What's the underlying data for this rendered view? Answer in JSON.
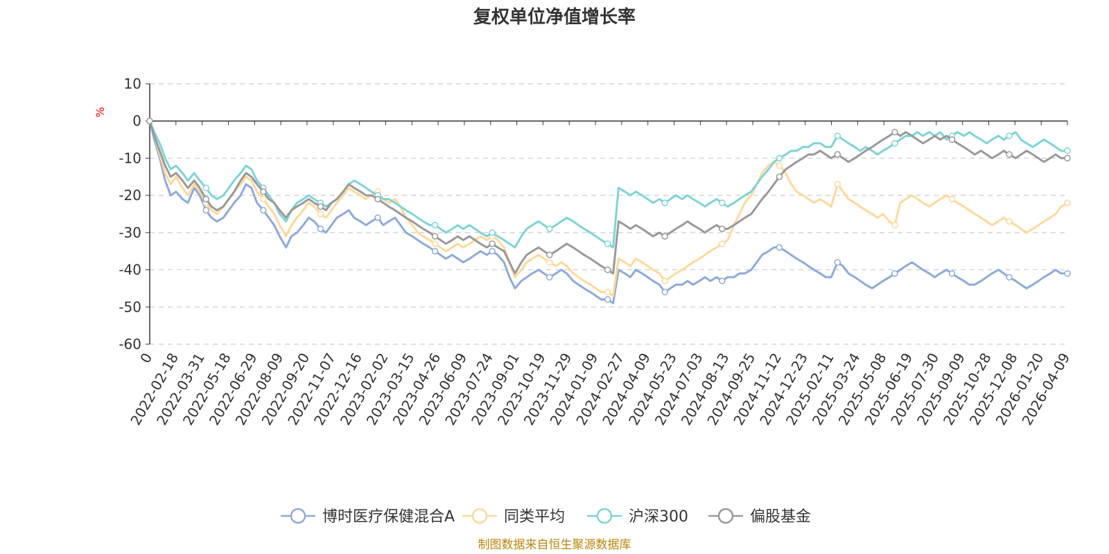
{
  "chart_data": {
    "type": "line",
    "title": "复权单位净值增长率",
    "ylabel": "%",
    "ylim": [
      -60,
      10
    ],
    "yticks": [
      10,
      0,
      -10,
      -20,
      -30,
      -40,
      -50,
      -60
    ],
    "xlabels": [
      "0",
      "2022-02-18",
      "2022-03-31",
      "2022-05-18",
      "2022-06-29",
      "2022-08-09",
      "2022-09-20",
      "2022-11-07",
      "2022-12-16",
      "2023-02-02",
      "2023-03-15",
      "2023-04-26",
      "2023-06-09",
      "2023-07-24",
      "2023-09-01",
      "2023-10-19",
      "2023-11-29",
      "2024-01-09",
      "2024-02-27",
      "2024-04-09",
      "2024-05-23",
      "2024-07-03",
      "2024-08-13",
      "2024-09-25",
      "2024-11-12",
      "2024-12-23",
      "2025-02-11",
      "2025-03-24",
      "2025-05-08",
      "2025-06-19",
      "2025-07-30",
      "2025-09-09",
      "2025-10-28",
      "2025-12-08",
      "2026-01-20",
      "2026-04-09"
    ],
    "x_index": [
      0,
      5,
      11,
      17,
      23,
      29,
      36,
      42,
      49,
      55,
      62,
      68,
      74,
      81,
      87,
      93,
      100,
      106,
      112,
      118,
      125,
      131,
      137,
      143,
      150,
      156,
      162,
      169,
      175,
      181,
      188,
      194,
      200,
      206,
      213,
      219,
      225,
      232,
      238,
      244,
      251,
      257,
      263,
      270,
      276,
      282,
      289,
      295,
      301,
      308,
      314,
      320,
      326,
      333,
      339,
      345,
      352,
      358,
      364,
      371,
      377,
      383,
      390,
      396,
      402,
      409,
      415,
      421,
      428,
      434,
      440,
      447,
      453,
      459,
      466,
      472,
      478,
      485,
      491,
      497,
      504,
      510,
      516,
      523,
      529,
      535,
      542,
      548,
      554,
      561,
      567,
      573,
      579,
      586,
      592,
      598,
      605,
      611,
      617,
      624,
      630,
      636,
      643,
      649,
      655,
      662,
      668,
      674,
      681,
      687,
      693,
      700,
      706,
      712,
      719,
      725,
      731,
      738,
      744,
      750,
      757,
      763,
      769,
      776,
      782,
      788,
      795,
      801,
      807,
      814,
      820,
      826,
      832,
      839,
      845,
      851,
      858,
      864,
      870,
      877,
      883,
      889,
      896,
      902,
      908,
      915,
      921,
      927,
      934,
      940,
      946,
      953,
      959,
      965,
      972,
      978,
      984,
      991,
      997,
      1003,
      1010
    ],
    "x_max": 1010,
    "series": [
      {
        "name": "博时医疗保健混合A",
        "color": "#8eaadb",
        "values": [
          0,
          -5,
          -10,
          -16,
          -20,
          -19,
          -21,
          -22,
          -18,
          -20,
          -24,
          -26,
          -27,
          -26,
          -24,
          -22,
          -20,
          -17,
          -18,
          -22,
          -24,
          -26,
          -28,
          -31,
          -34,
          -31,
          -30,
          -28,
          -26,
          -27,
          -29,
          -30,
          -28,
          -26,
          -25,
          -24,
          -26,
          -27,
          -28,
          -27,
          -26,
          -28,
          -27,
          -26,
          -28,
          -30,
          -31,
          -32,
          -33,
          -34,
          -35,
          -36,
          -37,
          -36,
          -37,
          -38,
          -37,
          -36,
          -35,
          -36,
          -35,
          -36,
          -38,
          -42,
          -45,
          -43,
          -42,
          -41,
          -40,
          -41,
          -42,
          -41,
          -40,
          -41,
          -43,
          -44,
          -45,
          -46,
          -47,
          -48,
          -48,
          -49,
          -40,
          -41,
          -42,
          -40,
          -41,
          -42,
          -43,
          -44,
          -46,
          -45,
          -44,
          -44,
          -43,
          -44,
          -43,
          -42,
          -43,
          -42,
          -43,
          -42,
          -42,
          -41,
          -41,
          -40,
          -38,
          -36,
          -35,
          -34,
          -34,
          -35,
          -36,
          -37,
          -38,
          -39,
          -40,
          -41,
          -42,
          -42,
          -38,
          -39,
          -41,
          -42,
          -43,
          -44,
          -45,
          -44,
          -43,
          -42,
          -41,
          -40,
          -39,
          -38,
          -39,
          -40,
          -41,
          -42,
          -41,
          -40,
          -41,
          -42,
          -43,
          -44,
          -44,
          -43,
          -42,
          -41,
          -40,
          -41,
          -42,
          -43,
          -44,
          -45,
          -44,
          -43,
          -42,
          -41,
          -40,
          -41,
          -41
        ]
      },
      {
        "name": "同类平均",
        "color": "#ffd89b",
        "values": [
          0,
          -4,
          -9,
          -14,
          -17,
          -15,
          -18,
          -20,
          -17,
          -19,
          -22,
          -24,
          -25,
          -23,
          -21,
          -19,
          -17,
          -15,
          -16,
          -19,
          -21,
          -23,
          -25,
          -28,
          -31,
          -28,
          -26,
          -24,
          -22,
          -23,
          -25,
          -26,
          -24,
          -22,
          -20,
          -18,
          -19,
          -20,
          -21,
          -20,
          -19,
          -21,
          -22,
          -21,
          -23,
          -26,
          -28,
          -30,
          -31,
          -32,
          -33,
          -34,
          -35,
          -34,
          -33,
          -34,
          -33,
          -32,
          -31,
          -32,
          -31,
          -32,
          -34,
          -38,
          -42,
          -40,
          -38,
          -37,
          -36,
          -37,
          -38,
          -39,
          -38,
          -39,
          -41,
          -42,
          -43,
          -44,
          -45,
          -46,
          -46,
          -47,
          -37,
          -38,
          -39,
          -37,
          -38,
          -39,
          -40,
          -41,
          -43,
          -42,
          -41,
          -40,
          -39,
          -38,
          -37,
          -36,
          -35,
          -34,
          -33,
          -32,
          -28,
          -25,
          -22,
          -20,
          -17,
          -14,
          -12,
          -11,
          -12,
          -14,
          -17,
          -19,
          -20,
          -21,
          -22,
          -21,
          -22,
          -23,
          -17,
          -19,
          -21,
          -22,
          -23,
          -24,
          -25,
          -26,
          -25,
          -27,
          -28,
          -22,
          -21,
          -20,
          -21,
          -22,
          -23,
          -22,
          -21,
          -20,
          -21,
          -22,
          -23,
          -24,
          -25,
          -26,
          -27,
          -28,
          -27,
          -26,
          -27,
          -28,
          -29,
          -30,
          -29,
          -28,
          -27,
          -26,
          -25,
          -23,
          -22
        ]
      },
      {
        "name": "沪深300",
        "color": "#7fd3d6",
        "values": [
          0,
          -3,
          -6,
          -10,
          -13,
          -12,
          -14,
          -16,
          -14,
          -16,
          -18,
          -20,
          -21,
          -20,
          -18,
          -16,
          -14,
          -12,
          -13,
          -16,
          -18,
          -20,
          -22,
          -25,
          -27,
          -24,
          -22,
          -21,
          -20,
          -21,
          -22,
          -23,
          -22,
          -21,
          -19,
          -17,
          -16,
          -17,
          -18,
          -19,
          -20,
          -21,
          -21,
          -22,
          -23,
          -24,
          -25,
          -26,
          -27,
          -28,
          -28,
          -29,
          -30,
          -29,
          -28,
          -29,
          -28,
          -29,
          -30,
          -31,
          -30,
          -31,
          -32,
          -33,
          -34,
          -31,
          -29,
          -28,
          -27,
          -28,
          -29,
          -28,
          -27,
          -26,
          -27,
          -28,
          -29,
          -30,
          -31,
          -32,
          -33,
          -34,
          -18,
          -19,
          -20,
          -19,
          -20,
          -21,
          -22,
          -21,
          -22,
          -21,
          -20,
          -21,
          -20,
          -21,
          -22,
          -23,
          -22,
          -21,
          -22,
          -23,
          -22,
          -21,
          -20,
          -19,
          -17,
          -15,
          -13,
          -11,
          -10,
          -9,
          -8,
          -8,
          -7,
          -7,
          -6,
          -6,
          -7,
          -7,
          -4,
          -5,
          -6,
          -7,
          -8,
          -7,
          -8,
          -9,
          -8,
          -7,
          -6,
          -5,
          -4,
          -4,
          -3,
          -4,
          -3,
          -4,
          -3,
          -5,
          -4,
          -3,
          -4,
          -3,
          -4,
          -5,
          -6,
          -5,
          -4,
          -5,
          -4,
          -3,
          -5,
          -6,
          -7,
          -6,
          -5,
          -6,
          -7,
          -8,
          -8
        ]
      },
      {
        "name": "偏股基金",
        "color": "#999999",
        "values": [
          0,
          -4,
          -8,
          -12,
          -15,
          -14,
          -16,
          -18,
          -16,
          -18,
          -21,
          -23,
          -24,
          -23,
          -21,
          -19,
          -16,
          -14,
          -15,
          -17,
          -19,
          -21,
          -22,
          -24,
          -26,
          -24,
          -23,
          -22,
          -21,
          -22,
          -23,
          -24,
          -22,
          -21,
          -19,
          -17,
          -18,
          -19,
          -20,
          -20,
          -21,
          -22,
          -23,
          -24,
          -25,
          -26,
          -27,
          -28,
          -29,
          -30,
          -31,
          -32,
          -33,
          -32,
          -31,
          -32,
          -31,
          -32,
          -33,
          -34,
          -33,
          -34,
          -35,
          -38,
          -41,
          -38,
          -36,
          -35,
          -34,
          -35,
          -36,
          -35,
          -34,
          -33,
          -34,
          -35,
          -36,
          -37,
          -38,
          -39,
          -40,
          -41,
          -27,
          -28,
          -29,
          -28,
          -29,
          -30,
          -31,
          -30,
          -31,
          -30,
          -29,
          -28,
          -27,
          -28,
          -29,
          -30,
          -29,
          -28,
          -29,
          -29,
          -28,
          -27,
          -26,
          -25,
          -23,
          -21,
          -19,
          -17,
          -15,
          -13,
          -12,
          -11,
          -10,
          -9,
          -9,
          -8,
          -9,
          -10,
          -9,
          -10,
          -11,
          -10,
          -9,
          -8,
          -7,
          -6,
          -5,
          -4,
          -3,
          -4,
          -3,
          -4,
          -5,
          -6,
          -5,
          -4,
          -5,
          -4,
          -5,
          -6,
          -7,
          -8,
          -9,
          -8,
          -9,
          -10,
          -9,
          -8,
          -9,
          -10,
          -9,
          -8,
          -9,
          -10,
          -11,
          -10,
          -9,
          -10,
          -10
        ]
      }
    ]
  },
  "legend": {
    "placement": "bottom-center"
  },
  "source": "制图数据来自恒生聚源数据库"
}
